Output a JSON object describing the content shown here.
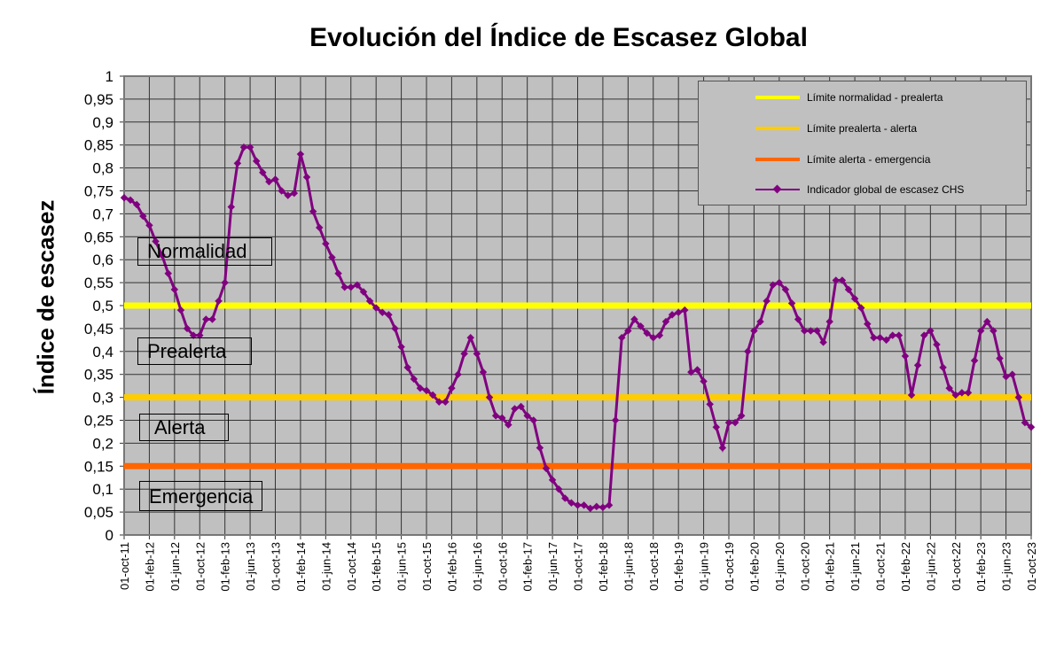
{
  "chart_data": {
    "type": "line",
    "title": "Evolución del Índice de Escasez Global",
    "ylabel": "Índice de escasez",
    "xlabel": "",
    "ylim": [
      0,
      1
    ],
    "yticks": [
      "0",
      "0,05",
      "0,1",
      "0,15",
      "0,2",
      "0,25",
      "0,3",
      "0,35",
      "0,4",
      "0,45",
      "0,5",
      "0,55",
      "0,6",
      "0,65",
      "0,7",
      "0,75",
      "0,8",
      "0,85",
      "0,9",
      "0,95",
      "1"
    ],
    "xticks": [
      "01-oct-11",
      "01-feb-12",
      "01-jun-12",
      "01-oct-12",
      "01-feb-13",
      "01-jun-13",
      "01-oct-13",
      "01-feb-14",
      "01-jun-14",
      "01-oct-14",
      "01-feb-15",
      "01-jun-15",
      "01-oct-15",
      "01-feb-16",
      "01-jun-16",
      "01-oct-16",
      "01-feb-17",
      "01-jun-17",
      "01-oct-17",
      "01-feb-18",
      "01-jun-18",
      "01-oct-18",
      "01-feb-19",
      "01-jun-19",
      "01-oct-19",
      "01-feb-20",
      "01-jun-20",
      "01-oct-20",
      "01-feb-21",
      "01-jun-21",
      "01-oct-21",
      "01-feb-22",
      "01-jun-22",
      "01-oct-22",
      "01-feb-23",
      "01-jun-23",
      "01-oct-23"
    ],
    "grid": true,
    "legend_position": "top-right",
    "thresholds": [
      {
        "name": "Límite normalidad - prealerta",
        "value": 0.5,
        "color": "#ffff00"
      },
      {
        "name": "Límite prealerta - alerta",
        "value": 0.3,
        "color": "#ffcc00"
      },
      {
        "name": "Límite alerta - emergencia",
        "value": 0.15,
        "color": "#ff6600"
      }
    ],
    "series": [
      {
        "name": "Indicador global de escasez CHS",
        "color": "#800080",
        "x_start": "01-oct-11",
        "x_step": "monthly",
        "values": [
          0.735,
          0.73,
          0.72,
          0.695,
          0.675,
          0.64,
          0.61,
          0.57,
          0.535,
          0.49,
          0.45,
          0.435,
          0.435,
          0.47,
          0.47,
          0.51,
          0.55,
          0.715,
          0.81,
          0.845,
          0.845,
          0.815,
          0.79,
          0.77,
          0.775,
          0.75,
          0.74,
          0.745,
          0.83,
          0.78,
          0.705,
          0.67,
          0.635,
          0.605,
          0.57,
          0.54,
          0.54,
          0.545,
          0.53,
          0.51,
          0.495,
          0.485,
          0.48,
          0.45,
          0.41,
          0.365,
          0.34,
          0.32,
          0.315,
          0.305,
          0.29,
          0.29,
          0.32,
          0.35,
          0.395,
          0.43,
          0.395,
          0.355,
          0.3,
          0.26,
          0.255,
          0.24,
          0.275,
          0.28,
          0.26,
          0.25,
          0.19,
          0.145,
          0.12,
          0.1,
          0.08,
          0.07,
          0.065,
          0.065,
          0.058,
          0.062,
          0.06,
          0.065,
          0.25,
          0.43,
          0.445,
          0.47,
          0.455,
          0.44,
          0.43,
          0.435,
          0.465,
          0.48,
          0.485,
          0.49,
          0.355,
          0.36,
          0.335,
          0.285,
          0.235,
          0.19,
          0.245,
          0.245,
          0.26,
          0.4,
          0.445,
          0.465,
          0.51,
          0.545,
          0.55,
          0.535,
          0.505,
          0.47,
          0.445,
          0.445,
          0.445,
          0.42,
          0.465,
          0.555,
          0.555,
          0.535,
          0.515,
          0.495,
          0.46,
          0.43,
          0.43,
          0.425,
          0.435,
          0.435,
          0.39,
          0.305,
          0.37,
          0.435,
          0.445,
          0.415,
          0.365,
          0.32,
          0.305,
          0.31,
          0.31,
          0.38,
          0.445,
          0.465,
          0.445,
          0.385,
          0.345,
          0.35,
          0.3,
          0.245,
          0.235
        ]
      }
    ],
    "zones": [
      {
        "label": "Normalidad",
        "color": "#99cc00"
      },
      {
        "label": "Prealerta",
        "color": "#ffff00"
      },
      {
        "label": "Alerta",
        "color": "#ffcc00"
      },
      {
        "label": "Emergencia",
        "color": "#ff0000"
      }
    ]
  }
}
